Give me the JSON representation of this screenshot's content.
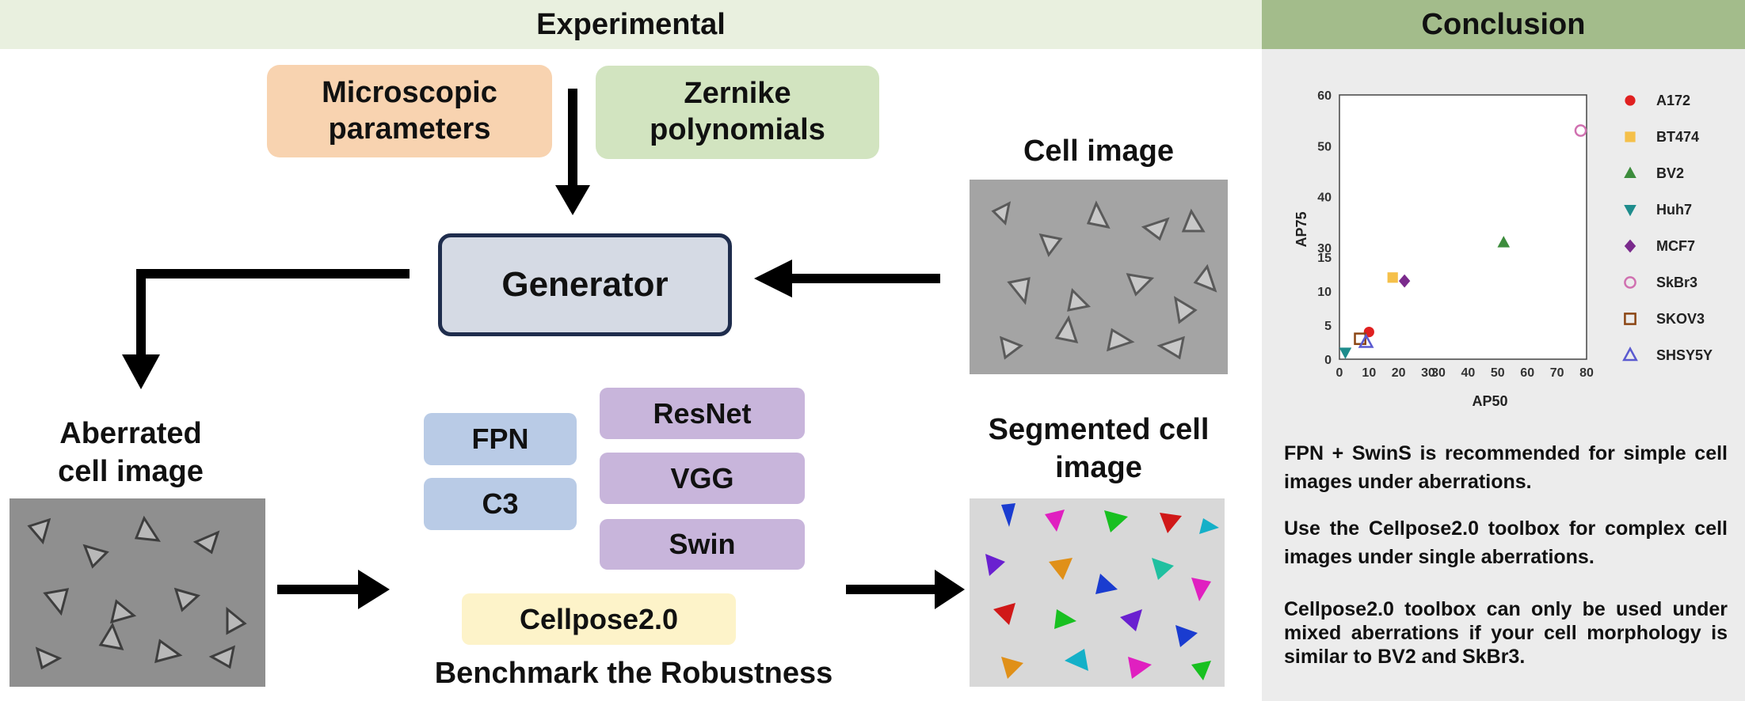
{
  "headers": {
    "experimental": "Experimental",
    "conclusion": "Conclusion"
  },
  "inputs": {
    "microscopic": "Microscopic parameters",
    "zernike": "Zernike polynomials"
  },
  "generator": "Generator",
  "labels": {
    "cell_image": "Cell image",
    "aberrated": "Aberrated cell image",
    "segmented": "Segmented cell image",
    "benchmark": "Benchmark the Robustness"
  },
  "models": {
    "necks": [
      "FPN",
      "C3"
    ],
    "backbones": [
      "ResNet",
      "VGG",
      "Swin"
    ],
    "toolbox": "Cellpose2.0"
  },
  "conclusions": [
    "FPN + SwinS is recommended for simple cell images under aberrations.",
    "Use the Cellpose2.0 toolbox for complex cell images under single aberrations.",
    "Cellpose2.0 toolbox can only be used under mixed aberrations if your cell morphology is similar to BV2 and SkBr3."
  ],
  "colors": {
    "header_left_bg": "#e9f0df",
    "header_right_bg": "#a3bc8b",
    "conclusion_panel_bg": "#ececec",
    "microscopic_bg": "#f8d3b0",
    "zernike_bg": "#d2e4c0",
    "generator_bg": "#d5dae4",
    "generator_border": "#1f2d4d",
    "neck_bg": "#b9cbe6",
    "backbone_bg": "#c8b5db",
    "toolbox_bg": "#fdf3c9"
  },
  "chart_data": {
    "type": "scatter",
    "xlabel": "AP50",
    "ylabel": "AP75",
    "x_ticks": [
      "0",
      "10",
      "20",
      "30",
      "30",
      "40",
      "50",
      "60",
      "70",
      "80"
    ],
    "y_ticks": [
      "0",
      "5",
      "10",
      "15",
      "30",
      "40",
      "50",
      "60"
    ],
    "axis_break": {
      "x": [
        30,
        30
      ],
      "y": [
        15,
        30
      ]
    },
    "xlim": [
      0,
      80
    ],
    "ylim": [
      0,
      60
    ],
    "grid": true,
    "legend_position": "right",
    "series": [
      {
        "name": "A172",
        "marker": "circle",
        "color": "#e02020",
        "x": 10,
        "y": 4
      },
      {
        "name": "BT474",
        "marker": "square",
        "color": "#f5c04a",
        "x": 18,
        "y": 12
      },
      {
        "name": "BV2",
        "marker": "triangle",
        "color": "#3c8c3c",
        "x": 52,
        "y": 31
      },
      {
        "name": "Huh7",
        "marker": "triangle-down",
        "color": "#1e8c8c",
        "x": 2,
        "y": 1
      },
      {
        "name": "MCF7",
        "marker": "diamond",
        "color": "#7a2a8c",
        "x": 22,
        "y": 11.5
      },
      {
        "name": "SkBr3",
        "marker": "circle-open",
        "color": "#d070b0",
        "x": 78,
        "y": 53
      },
      {
        "name": "SKOV3",
        "marker": "square-open",
        "color": "#8b4513",
        "x": 7,
        "y": 3
      },
      {
        "name": "SHSY5Y",
        "marker": "triangle-open",
        "color": "#5a5ad0",
        "x": 9,
        "y": 2.5
      }
    ]
  }
}
